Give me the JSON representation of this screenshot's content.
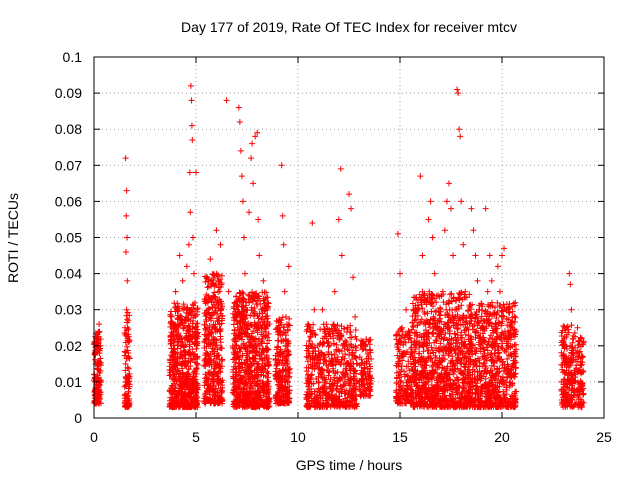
{
  "chart_data": {
    "type": "scatter",
    "title": "Day 177 of 2019, Rate Of TEC Index for receiver mtcv",
    "xlabel": "GPS time / hours",
    "ylabel": "ROTI / TECUs",
    "xlim": [
      0,
      25
    ],
    "ylim": [
      0,
      0.1
    ],
    "x_ticks": [
      0,
      5,
      10,
      15,
      20,
      25
    ],
    "x_tick_labels": [
      "0",
      "5",
      "10",
      "15",
      "20",
      "25"
    ],
    "y_ticks": [
      0,
      0.01,
      0.02,
      0.03,
      0.04,
      0.05,
      0.06,
      0.07,
      0.08,
      0.09,
      0.1
    ],
    "y_tick_labels": [
      "0",
      "0.01",
      "0.02",
      "0.03",
      "0.04",
      "0.05",
      "0.06",
      "0.07",
      "0.08",
      "0.09",
      "0.1"
    ],
    "grid": true,
    "marker": "plus",
    "color": "#ff0000",
    "series": [
      {
        "values": [
          [
            0.0,
            0.012
          ],
          [
            0.05,
            0.018
          ],
          [
            0.1,
            0.008
          ],
          [
            0.15,
            0.022
          ],
          [
            0.2,
            0.015
          ],
          [
            0.25,
            0.026
          ],
          [
            0.3,
            0.01
          ],
          [
            0.12,
            0.005
          ],
          [
            0.22,
            0.019
          ],
          [
            1.55,
            0.072
          ],
          [
            1.6,
            0.063
          ],
          [
            1.58,
            0.056
          ],
          [
            1.62,
            0.05
          ],
          [
            1.57,
            0.046
          ],
          [
            1.63,
            0.038
          ],
          [
            1.6,
            0.03
          ],
          [
            1.65,
            0.022
          ],
          [
            1.55,
            0.015
          ],
          [
            1.7,
            0.01
          ],
          [
            1.6,
            0.005
          ],
          [
            1.68,
            0.018
          ],
          [
            1.52,
            0.025
          ],
          [
            3.8,
            0.026
          ],
          [
            3.9,
            0.012
          ],
          [
            4.0,
            0.035
          ],
          [
            4.1,
            0.02
          ],
          [
            4.2,
            0.045
          ],
          [
            4.3,
            0.015
          ],
          [
            4.4,
            0.03
          ],
          [
            4.5,
            0.01
          ],
          [
            4.6,
            0.025
          ],
          [
            4.7,
            0.018
          ],
          [
            4.75,
            0.092
          ],
          [
            4.78,
            0.088
          ],
          [
            4.8,
            0.081
          ],
          [
            4.82,
            0.077
          ],
          [
            4.7,
            0.068
          ],
          [
            4.72,
            0.057
          ],
          [
            4.85,
            0.05
          ],
          [
            4.9,
            0.04
          ],
          [
            4.95,
            0.03
          ],
          [
            5.0,
            0.068
          ],
          [
            5.05,
            0.022
          ],
          [
            4.55,
            0.042
          ],
          [
            4.65,
            0.048
          ],
          [
            4.35,
            0.038
          ],
          [
            5.5,
            0.018
          ],
          [
            5.6,
            0.03
          ],
          [
            5.7,
            0.044
          ],
          [
            5.8,
            0.012
          ],
          [
            5.9,
            0.025
          ],
          [
            6.0,
            0.052
          ],
          [
            6.1,
            0.038
          ],
          [
            5.95,
            0.02
          ],
          [
            6.15,
            0.015
          ],
          [
            6.2,
            0.048
          ],
          [
            6.5,
            0.088
          ],
          [
            6.6,
            0.035
          ],
          [
            6.9,
            0.032
          ],
          [
            7.0,
            0.012
          ],
          [
            7.05,
            0.025
          ],
          [
            7.1,
            0.086
          ],
          [
            7.15,
            0.082
          ],
          [
            7.2,
            0.074
          ],
          [
            7.25,
            0.067
          ],
          [
            7.3,
            0.06
          ],
          [
            7.35,
            0.05
          ],
          [
            7.4,
            0.04
          ],
          [
            7.45,
            0.02
          ],
          [
            7.6,
            0.057
          ],
          [
            7.7,
            0.072
          ],
          [
            7.75,
            0.076
          ],
          [
            7.8,
            0.065
          ],
          [
            7.9,
            0.078
          ],
          [
            8.0,
            0.079
          ],
          [
            8.05,
            0.055
          ],
          [
            8.1,
            0.045
          ],
          [
            8.2,
            0.03
          ],
          [
            8.3,
            0.038
          ],
          [
            8.4,
            0.025
          ],
          [
            8.5,
            0.015
          ],
          [
            7.5,
            0.015
          ],
          [
            7.85,
            0.01
          ],
          [
            9.0,
            0.015
          ],
          [
            9.1,
            0.025
          ],
          [
            9.2,
            0.07
          ],
          [
            9.25,
            0.056
          ],
          [
            9.3,
            0.048
          ],
          [
            9.35,
            0.035
          ],
          [
            9.4,
            0.02
          ],
          [
            9.5,
            0.01
          ],
          [
            9.55,
            0.042
          ],
          [
            10.5,
            0.012
          ],
          [
            10.6,
            0.02
          ],
          [
            10.7,
            0.054
          ],
          [
            10.8,
            0.03
          ],
          [
            10.9,
            0.015
          ],
          [
            11.0,
            0.01
          ],
          [
            11.2,
            0.03
          ],
          [
            11.4,
            0.022
          ],
          [
            11.6,
            0.015
          ],
          [
            11.8,
            0.035
          ],
          [
            11.9,
            0.008
          ],
          [
            12.0,
            0.055
          ],
          [
            12.1,
            0.069
          ],
          [
            12.15,
            0.045
          ],
          [
            12.2,
            0.02
          ],
          [
            12.3,
            0.012
          ],
          [
            12.5,
            0.062
          ],
          [
            12.6,
            0.058
          ],
          [
            12.7,
            0.039
          ],
          [
            12.8,
            0.028
          ],
          [
            12.9,
            0.015
          ],
          [
            13.1,
            0.01
          ],
          [
            13.3,
            0.02
          ],
          [
            13.5,
            0.015
          ],
          [
            14.9,
            0.051
          ],
          [
            15.0,
            0.04
          ],
          [
            15.05,
            0.012
          ],
          [
            15.1,
            0.025
          ],
          [
            15.2,
            0.018
          ],
          [
            15.3,
            0.03
          ],
          [
            15.4,
            0.008
          ],
          [
            15.5,
            0.022
          ],
          [
            15.8,
            0.03
          ],
          [
            16.0,
            0.067
          ],
          [
            16.1,
            0.045
          ],
          [
            16.2,
            0.034
          ],
          [
            16.3,
            0.02
          ],
          [
            16.4,
            0.055
          ],
          [
            16.5,
            0.06
          ],
          [
            16.6,
            0.05
          ],
          [
            16.7,
            0.04
          ],
          [
            16.8,
            0.025
          ],
          [
            16.9,
            0.015
          ],
          [
            17.0,
            0.01
          ],
          [
            17.1,
            0.035
          ],
          [
            17.2,
            0.052
          ],
          [
            17.3,
            0.06
          ],
          [
            17.4,
            0.065
          ],
          [
            17.5,
            0.058
          ],
          [
            17.6,
            0.045
          ],
          [
            17.7,
            0.03
          ],
          [
            17.8,
            0.091
          ],
          [
            17.85,
            0.09
          ],
          [
            17.9,
            0.08
          ],
          [
            17.95,
            0.078
          ],
          [
            18.0,
            0.06
          ],
          [
            18.1,
            0.048
          ],
          [
            18.2,
            0.035
          ],
          [
            18.3,
            0.025
          ],
          [
            18.5,
            0.058
          ],
          [
            18.6,
            0.052
          ],
          [
            18.7,
            0.045
          ],
          [
            18.8,
            0.038
          ],
          [
            18.9,
            0.03
          ],
          [
            19.0,
            0.025
          ],
          [
            19.1,
            0.015
          ],
          [
            19.2,
            0.058
          ],
          [
            19.3,
            0.035
          ],
          [
            19.4,
            0.045
          ],
          [
            19.5,
            0.038
          ],
          [
            19.6,
            0.02
          ],
          [
            19.7,
            0.012
          ],
          [
            19.8,
            0.042
          ],
          [
            19.9,
            0.035
          ],
          [
            20.0,
            0.045
          ],
          [
            20.1,
            0.047
          ],
          [
            20.2,
            0.03
          ],
          [
            20.3,
            0.02
          ],
          [
            20.4,
            0.01
          ],
          [
            20.5,
            0.025
          ],
          [
            20.6,
            0.015
          ],
          [
            23.0,
            0.01
          ],
          [
            23.1,
            0.02
          ],
          [
            23.2,
            0.015
          ],
          [
            23.3,
            0.04
          ],
          [
            23.35,
            0.037
          ],
          [
            23.4,
            0.03
          ],
          [
            23.5,
            0.022
          ],
          [
            23.6,
            0.012
          ],
          [
            23.7,
            0.025
          ],
          [
            23.8,
            0.018
          ],
          [
            23.9,
            0.008
          ],
          [
            23.45,
            0.005
          ]
        ],
        "clusters": [
          {
            "x_range": [
              -0.05,
              0.35
            ],
            "y_range": [
              0.004,
              0.024
            ],
            "count": 160
          },
          {
            "x_range": [
              1.5,
              1.75
            ],
            "y_range": [
              0.003,
              0.03
            ],
            "count": 90
          },
          {
            "x_range": [
              3.7,
              5.1
            ],
            "y_range": [
              0.003,
              0.032
            ],
            "count": 620
          },
          {
            "x_range": [
              5.4,
              6.3
            ],
            "y_range": [
              0.004,
              0.04
            ],
            "count": 360
          },
          {
            "x_range": [
              6.8,
              8.6
            ],
            "y_range": [
              0.003,
              0.035
            ],
            "count": 760
          },
          {
            "x_range": [
              8.9,
              9.6
            ],
            "y_range": [
              0.004,
              0.028
            ],
            "count": 240
          },
          {
            "x_range": [
              10.4,
              12.9
            ],
            "y_range": [
              0.003,
              0.026
            ],
            "count": 560
          },
          {
            "x_range": [
              13.0,
              13.6
            ],
            "y_range": [
              0.006,
              0.022
            ],
            "count": 110
          },
          {
            "x_range": [
              14.8,
              15.6
            ],
            "y_range": [
              0.004,
              0.025
            ],
            "count": 170
          },
          {
            "x_range": [
              15.6,
              18.4
            ],
            "y_range": [
              0.003,
              0.035
            ],
            "count": 950
          },
          {
            "x_range": [
              18.4,
              20.7
            ],
            "y_range": [
              0.003,
              0.032
            ],
            "count": 720
          },
          {
            "x_range": [
              22.9,
              24.0
            ],
            "y_range": [
              0.003,
              0.026
            ],
            "count": 280
          }
        ]
      }
    ]
  }
}
